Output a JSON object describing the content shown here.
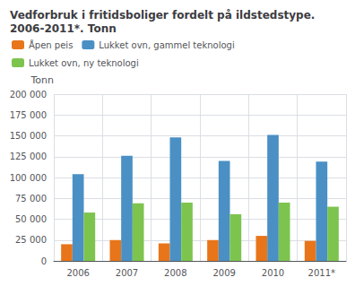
{
  "chart_data": {
    "type": "bar",
    "title": "Vedforbruk i fritidsboliger fordelt på ildstedstype. 2006-2011*. Tonn",
    "ylabel": "Tonn",
    "categories": [
      "2006",
      "2007",
      "2008",
      "2009",
      "2010",
      "2011*"
    ],
    "series": [
      {
        "name": "Åpen peis",
        "color": "#E8751A",
        "values": [
          20000,
          25000,
          21000,
          25000,
          30000,
          24000
        ]
      },
      {
        "name": "Lukket ovn, gammel teknologi",
        "color": "#4A90C4",
        "values": [
          104000,
          126000,
          148000,
          120000,
          151000,
          119000
        ]
      },
      {
        "name": "Lukket ovn, ny teknologi",
        "color": "#7DC44E",
        "values": [
          58000,
          69000,
          70000,
          56000,
          70000,
          65000
        ]
      }
    ],
    "ylim": [
      0,
      200000
    ],
    "yticks": [
      0,
      {
        "value": 25000,
        "label": "25 000"
      },
      {
        "value": 50000,
        "label": "50 000"
      },
      {
        "value": 75000,
        "label": "75 000"
      },
      {
        "value": 100000,
        "label": "100 000"
      },
      {
        "value": 125000,
        "label": "125 000"
      },
      {
        "value": 150000,
        "label": "150 000"
      },
      {
        "value": 175000,
        "label": "175 000"
      },
      {
        "value": 200000,
        "label": "200 000"
      }
    ],
    "grid": true,
    "legend": "upper left"
  }
}
